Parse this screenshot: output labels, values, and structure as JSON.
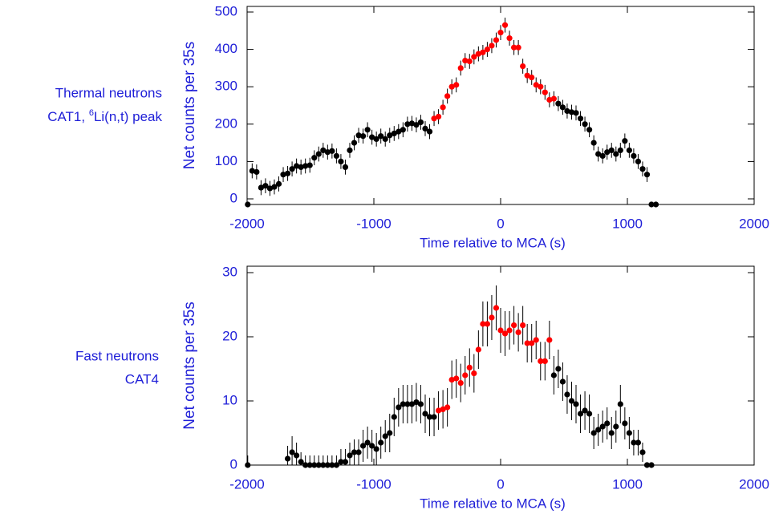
{
  "chart_data": [
    {
      "type": "scatter",
      "label": {
        "line1": "Thermal neutrons",
        "line2": [
          "CAT1, ",
          "6",
          "Li(n,t) peak"
        ]
      },
      "xlabel": "Time relative to MCA (s)",
      "ylabel": "Net counts per 35s",
      "xlim": [
        -2000,
        2000
      ],
      "xticks": [
        -2000,
        -1000,
        0,
        1000,
        2000
      ],
      "ylim": [
        -15,
        515
      ],
      "yticks": [
        0,
        100,
        200,
        300,
        400,
        500
      ],
      "series": [
        {
          "color": "#000000",
          "x": [
            -1995,
            -1960,
            -1925,
            -1890,
            -1855,
            -1820,
            -1785,
            -1750,
            -1715,
            -1680,
            -1645,
            -1610,
            -1575,
            -1540,
            -1505,
            -1470,
            -1435,
            -1400,
            -1365,
            -1330,
            -1295,
            -1260,
            -1225,
            -1190,
            -1155,
            -1120,
            -1085,
            -1050,
            -1015,
            -980,
            -945,
            -910,
            -875,
            -840,
            -805,
            -770,
            -735,
            -700,
            -665,
            -630,
            -595,
            -560,
            455,
            490,
            525,
            560,
            595,
            630,
            665,
            700,
            735,
            770,
            805,
            840,
            875,
            910,
            945,
            980,
            1015,
            1050,
            1085,
            1120,
            1155,
            1190,
            1225
          ],
          "values": [
            -15,
            75,
            72,
            30,
            35,
            28,
            32,
            40,
            65,
            68,
            80,
            88,
            85,
            88,
            90,
            110,
            120,
            130,
            125,
            128,
            115,
            100,
            85,
            130,
            150,
            170,
            168,
            185,
            165,
            160,
            168,
            160,
            170,
            175,
            180,
            185,
            200,
            202,
            198,
            205,
            188,
            180,
            255,
            245,
            235,
            232,
            230,
            215,
            200,
            185,
            150,
            120,
            115,
            125,
            130,
            120,
            130,
            155,
            130,
            115,
            100,
            80,
            65,
            -15,
            -15
          ],
          "errors": [
            0,
            20,
            20,
            20,
            20,
            20,
            20,
            20,
            20,
            20,
            20,
            20,
            20,
            20,
            20,
            20,
            20,
            20,
            20,
            20,
            20,
            20,
            20,
            20,
            20,
            20,
            20,
            20,
            20,
            20,
            20,
            20,
            20,
            20,
            20,
            20,
            20,
            20,
            20,
            20,
            20,
            20,
            20,
            20,
            20,
            20,
            20,
            20,
            20,
            20,
            20,
            20,
            20,
            20,
            20,
            20,
            20,
            20,
            20,
            20,
            20,
            20,
            20,
            0,
            0
          ]
        },
        {
          "color": "#ff0000",
          "x": [
            -525,
            -490,
            -455,
            -420,
            -385,
            -350,
            -315,
            -280,
            -245,
            -210,
            -175,
            -140,
            -105,
            -70,
            -35,
            0,
            35,
            70,
            105,
            140,
            175,
            210,
            245,
            280,
            315,
            350,
            385,
            420
          ],
          "values": [
            215,
            220,
            245,
            275,
            300,
            305,
            350,
            370,
            368,
            380,
            388,
            392,
            400,
            410,
            425,
            445,
            465,
            430,
            405,
            405,
            355,
            330,
            325,
            305,
            300,
            285,
            265,
            268
          ],
          "errors": [
            20,
            20,
            20,
            20,
            20,
            20,
            20,
            20,
            20,
            20,
            20,
            20,
            20,
            20,
            20,
            20,
            20,
            20,
            20,
            20,
            20,
            20,
            20,
            20,
            20,
            20,
            20,
            20
          ]
        }
      ]
    },
    {
      "type": "scatter",
      "label": {
        "line1": "Fast neutrons",
        "line2": [
          "CAT4"
        ]
      },
      "xlabel": "Time relative to MCA (s)",
      "ylabel": "Net counts per 35s",
      "xlim": [
        -2000,
        2000
      ],
      "xticks": [
        -2000,
        -1000,
        0,
        1000,
        2000
      ],
      "ylim": [
        0,
        31
      ],
      "yticks": [
        0,
        10,
        20,
        30
      ],
      "series": [
        {
          "color": "#000000",
          "x": [
            -1995,
            -1680,
            -1645,
            -1610,
            -1575,
            -1540,
            -1505,
            -1470,
            -1435,
            -1400,
            -1365,
            -1330,
            -1295,
            -1260,
            -1225,
            -1190,
            -1155,
            -1120,
            -1085,
            -1050,
            -1015,
            -980,
            -945,
            -910,
            -875,
            -840,
            -805,
            -770,
            -735,
            -700,
            -665,
            -630,
            -595,
            -560,
            -525,
            420,
            455,
            490,
            525,
            560,
            595,
            630,
            665,
            700,
            735,
            770,
            805,
            840,
            875,
            910,
            945,
            980,
            1015,
            1050,
            1085,
            1120,
            1155,
            1190
          ],
          "values": [
            0,
            1,
            2,
            1.5,
            0.5,
            0,
            0,
            0,
            0,
            0,
            0,
            0,
            0,
            0.5,
            0.5,
            1.5,
            2,
            2,
            3,
            3.5,
            3,
            2.5,
            3.5,
            4.5,
            5,
            7.5,
            9,
            9.5,
            9.5,
            9.5,
            9.8,
            9.5,
            8,
            7.5,
            7.5,
            14,
            15,
            13,
            11,
            10,
            9.5,
            8,
            8.5,
            8,
            5,
            5.5,
            6,
            6.5,
            5,
            6,
            9.5,
            6.5,
            5,
            3.5,
            3.5,
            2,
            0,
            0
          ],
          "errors": [
            1.5,
            2,
            2.5,
            2,
            1.5,
            1.5,
            1.5,
            1.5,
            1.5,
            1.5,
            1.5,
            1.5,
            1.5,
            2,
            2,
            2,
            2,
            2,
            2.5,
            2.5,
            2.5,
            2.5,
            2.5,
            2.5,
            3,
            3,
            3,
            3,
            3,
            3,
            3,
            3,
            3,
            3,
            3,
            3,
            3,
            3,
            3,
            3,
            3,
            3,
            3,
            3,
            2.5,
            2.5,
            2.5,
            2.5,
            2.5,
            2.5,
            3,
            2.5,
            2.5,
            2,
            2,
            1.5,
            0,
            0
          ]
        },
        {
          "color": "#ff0000",
          "x": [
            -490,
            -455,
            -420,
            -385,
            -350,
            -315,
            -280,
            -245,
            -210,
            -175,
            -140,
            -105,
            -70,
            -35,
            0,
            35,
            70,
            105,
            140,
            175,
            210,
            245,
            280,
            315,
            350,
            385
          ],
          "values": [
            8.5,
            8.7,
            9,
            13.3,
            13.5,
            12.8,
            14,
            15.2,
            14.3,
            18,
            22,
            22,
            23,
            24.5,
            21,
            20.5,
            21,
            21.8,
            20.7,
            21.8,
            19,
            19,
            19.5,
            16.2,
            16.2,
            19.5
          ],
          "errors": [
            3,
            3,
            3,
            3,
            3,
            3,
            3,
            3,
            3,
            3,
            3.5,
            3.5,
            3.5,
            3.5,
            3.5,
            3.5,
            3,
            3,
            3,
            3,
            3,
            3,
            3,
            3,
            3,
            3
          ]
        }
      ]
    }
  ]
}
